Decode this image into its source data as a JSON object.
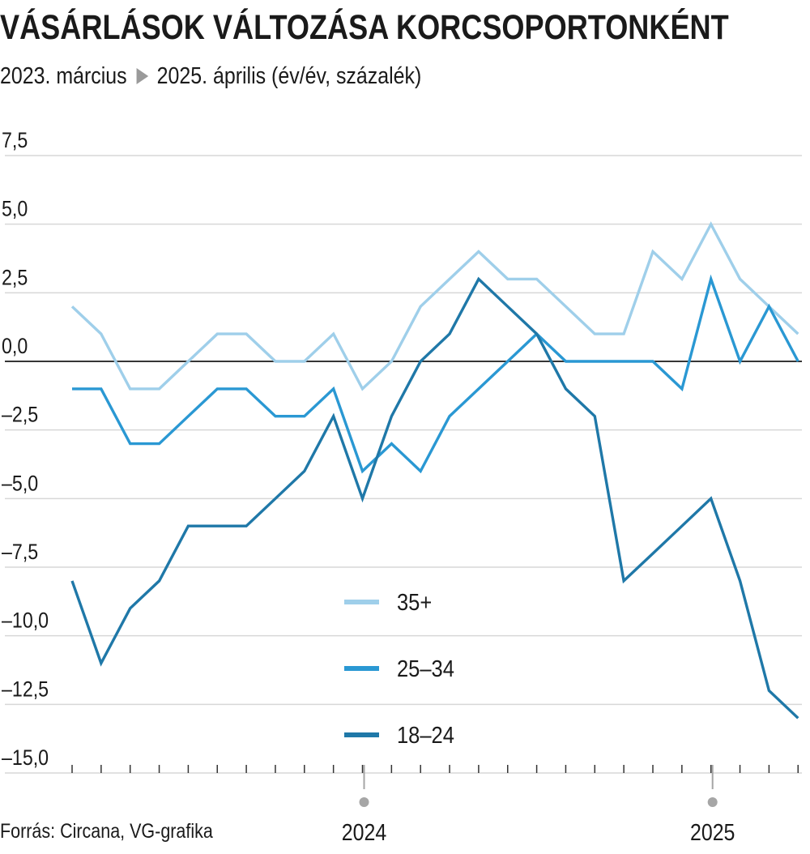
{
  "title": "VÁSÁRLÁSOK VÁLTOZÁSA KORCSOPORTONKÉNT",
  "subtitle": {
    "start": "2023. március",
    "end": "2025. április (év/év, százalék)"
  },
  "source": "Forrás: Circana, VG-grafika",
  "colors": {
    "s35": "#9fcfea",
    "s25": "#2a98d3",
    "s18": "#1f78a8",
    "grid": "#d7d7d7",
    "axis": "#1a1a1a",
    "marker": "#a6a6a6"
  },
  "chart_data": {
    "type": "line",
    "x": [
      "2023-03",
      "2023-04",
      "2023-05",
      "2023-06",
      "2023-07",
      "2023-08",
      "2023-09",
      "2023-10",
      "2023-11",
      "2023-12",
      "2024-01",
      "2024-02",
      "2024-03",
      "2024-04",
      "2024-05",
      "2024-06",
      "2024-07",
      "2024-08",
      "2024-09",
      "2024-10",
      "2024-11",
      "2024-12",
      "2025-01",
      "2025-02",
      "2025-03",
      "2025-04"
    ],
    "x_tick_labels": [
      {
        "label": "2024",
        "x": "2024-01"
      },
      {
        "label": "2025",
        "x": "2025-01"
      }
    ],
    "y_ticks": [
      "7,5",
      "5,0",
      "2,5",
      "0,0",
      "–2,5",
      "–5,0",
      "–7,5",
      "–10,0",
      "–12,5",
      "–15,0"
    ],
    "y_tick_values": [
      7.5,
      5,
      2.5,
      0,
      -2.5,
      -5,
      -7.5,
      -10,
      -12.5,
      -15
    ],
    "ylim": [
      -15,
      7.5
    ],
    "grid": true,
    "legend_position": "bottom-center",
    "series": [
      {
        "name": "35+",
        "color": "#9fcfea",
        "values": [
          2,
          1,
          -1,
          -1,
          0,
          1,
          1,
          0,
          0,
          1,
          -1,
          0,
          2,
          3,
          4,
          3,
          3,
          2,
          1,
          1,
          4,
          3,
          5,
          3,
          2,
          1
        ]
      },
      {
        "name": "25–34",
        "color": "#2a98d3",
        "values": [
          -1,
          -1,
          -3,
          -3,
          -2,
          -1,
          -1,
          -2,
          -2,
          -1,
          -4,
          -3,
          -4,
          -2,
          -1,
          0,
          1,
          0,
          0,
          0,
          0,
          -1,
          3,
          0,
          2,
          0
        ]
      },
      {
        "name": "18–24",
        "color": "#1f78a8",
        "values": [
          -8,
          -11,
          -9,
          -8,
          -6,
          -6,
          -6,
          -5,
          -4,
          -2,
          -5,
          -2,
          0,
          1,
          3,
          2,
          1,
          -1,
          -2,
          -8,
          -7,
          -6,
          -5,
          -8,
          -12,
          -13
        ]
      }
    ]
  }
}
